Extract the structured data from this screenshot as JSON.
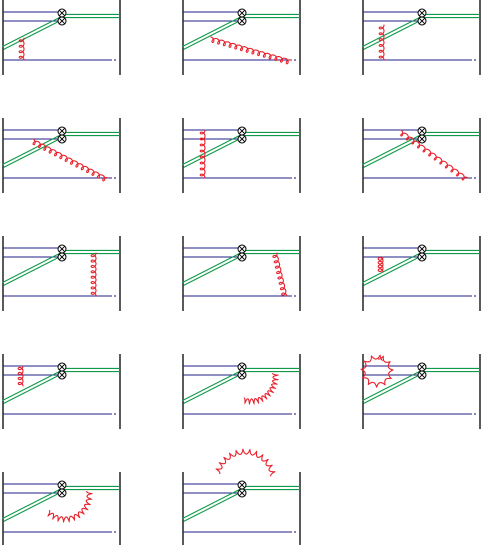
{
  "colors": {
    "frame": "#000000",
    "quark": "#1f1f8a",
    "wilson": "#0f9a4a",
    "gluon": "#e8202a",
    "vertex_fill": "#ffffff"
  },
  "diagrams": [
    {
      "id": 1,
      "gluon": "vertical-loops"
    },
    {
      "id": 2,
      "gluon": "diagonal-loops"
    },
    {
      "id": 3,
      "gluon": "vertical-loops"
    },
    {
      "id": 4,
      "gluon": "diagonal-loops"
    },
    {
      "id": 5,
      "gluon": "vertical-loops"
    },
    {
      "id": 6,
      "gluon": "diagonal-loops"
    },
    {
      "id": 7,
      "gluon": "vertical-loops"
    },
    {
      "id": 8,
      "gluon": "diagonal-loops"
    },
    {
      "id": 9,
      "gluon": "vertical-loops"
    },
    {
      "id": 10,
      "gluon": "vertical-loops"
    },
    {
      "id": 11,
      "gluon": "arc-loops"
    },
    {
      "id": 12,
      "gluon": "circle-loops"
    },
    {
      "id": 13,
      "gluon": "arc-loops"
    },
    {
      "id": 14,
      "gluon": "arc-loops"
    }
  ]
}
